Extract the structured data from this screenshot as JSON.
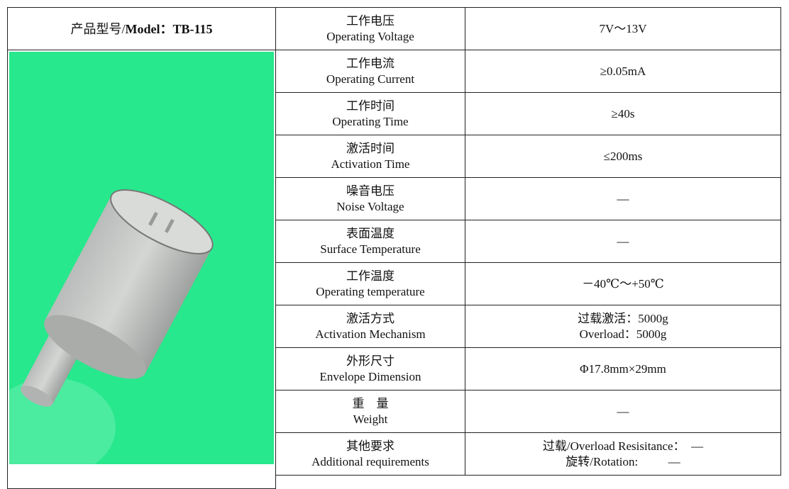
{
  "table": {
    "model_prefix": "产品型号/",
    "model": "Model：TB-115",
    "rows": [
      {
        "name_cn": "工作电压",
        "name_en": "Operating Voltage",
        "value": [
          "7V～13V"
        ]
      },
      {
        "name_cn": "工作电流",
        "name_en": "Operating Current",
        "value": [
          "≥0.05mA"
        ]
      },
      {
        "name_cn": "工作时间",
        "name_en": "Operating Time",
        "value": [
          "≥40s"
        ]
      },
      {
        "name_cn": "激活时间",
        "name_en": "Activation Time",
        "value": [
          "≤200ms"
        ]
      },
      {
        "name_cn": "噪音电压",
        "name_en": "Noise Voltage",
        "value": [
          "—"
        ]
      },
      {
        "name_cn": "表面温度",
        "name_en": "Surface Temperature",
        "value": [
          "—"
        ]
      },
      {
        "name_cn": "工作温度",
        "name_en": "Operating temperature",
        "value": [
          "－40℃～+50℃"
        ]
      },
      {
        "name_cn": "激活方式",
        "name_en": "Activation Mechanism",
        "value": [
          "过载激活：5000g",
          "Overload：5000g"
        ]
      },
      {
        "name_cn": "外形尺寸",
        "name_en": "Envelope Dimension",
        "value": [
          "Φ17.8mm×29mm"
        ]
      },
      {
        "name_cn": "重　量",
        "name_en": "Weight",
        "value": [
          "—"
        ]
      },
      {
        "name_cn": "其他要求",
        "name_en": "Additional requirements",
        "value": [
          "过载/Overload Resisitance：  —",
          "旋转/Rotation:          —"
        ]
      }
    ]
  }
}
